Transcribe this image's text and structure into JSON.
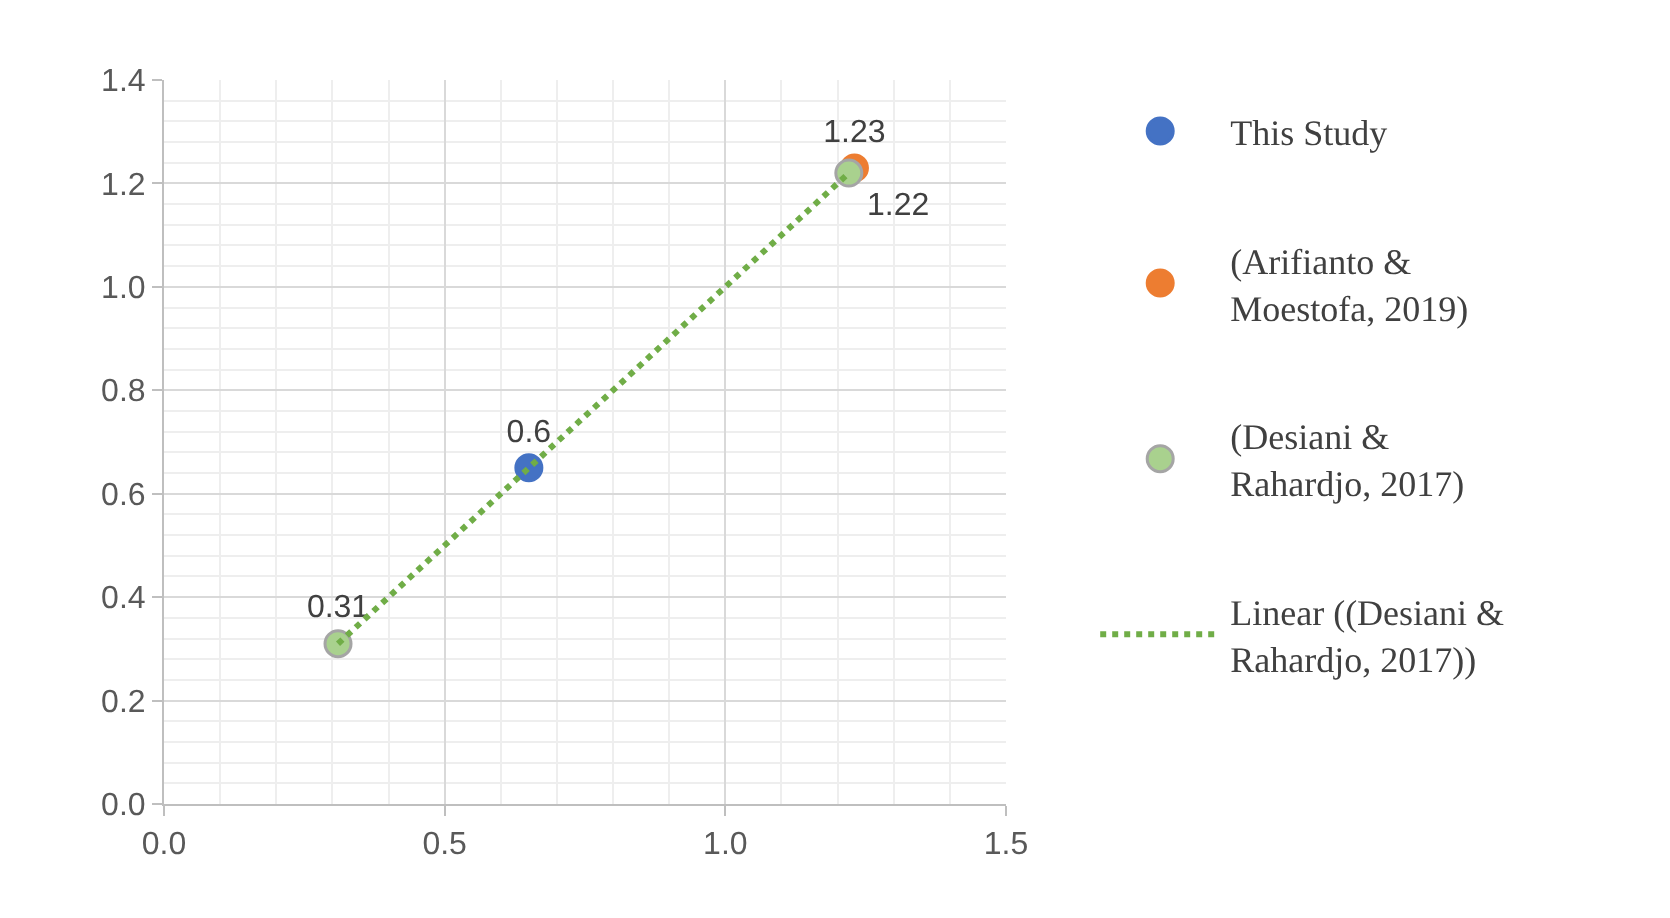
{
  "chart_data": {
    "type": "scatter",
    "series": [
      {
        "name": "This Study",
        "color": "#4472c4",
        "x": [
          0.65
        ],
        "values": [
          0.65
        ],
        "value_labels": [
          "0.6"
        ]
      },
      {
        "name": "(Arifianto & Moestofa, 2019)",
        "color": "#ed7d31",
        "x": [
          1.23
        ],
        "values": [
          1.23
        ],
        "value_labels": [
          "1.23"
        ]
      },
      {
        "name": "(Desiani & Rahardjo, 2017)",
        "color": "#a9d18e",
        "x": [
          0.31,
          1.22
        ],
        "values": [
          0.31,
          1.22
        ],
        "value_labels": [
          "0.31",
          "1.22"
        ]
      },
      {
        "name": "Linear ((Desiani & Rahardjo, 2017))",
        "type": "line",
        "marker": "none",
        "line_style": "dotted",
        "color": "#70ad47",
        "x": [
          0.31,
          1.22
        ],
        "values": [
          0.31,
          1.22
        ]
      }
    ],
    "xlim": [
      0,
      1.5
    ],
    "xticks": [
      {
        "value": 0,
        "label": "0.0"
      },
      0.5,
      {
        "value": 1,
        "label": "1.0"
      },
      1.5
    ],
    "ylim": [
      0,
      1.4
    ],
    "yticks": [
      {
        "value": 0,
        "label": "0.0"
      },
      0.2,
      0.4,
      0.6,
      0.8,
      {
        "value": 1,
        "label": "1.0"
      },
      1.2,
      1.4
    ],
    "grid": true,
    "legend": "right",
    "marker": "circle"
  }
}
